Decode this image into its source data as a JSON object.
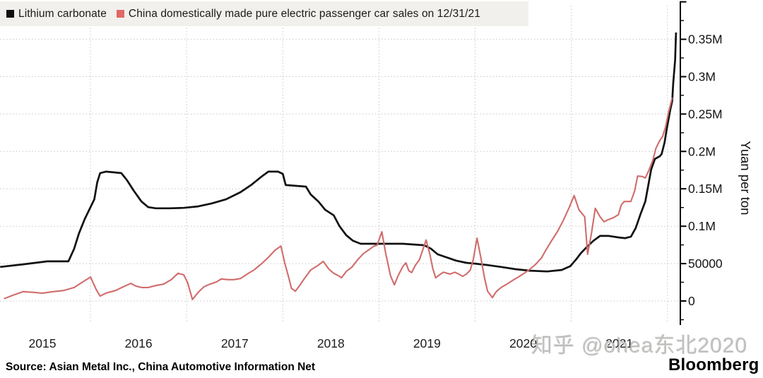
{
  "legend": {
    "items": [
      {
        "label": "Lithium carbonate",
        "color": "#101010"
      },
      {
        "label": "China domestically made pure electric passenger car sales on 12/31/21",
        "color": "#e06868"
      }
    ]
  },
  "source": "Source: Asian Metal Inc., China Automotive Information Net",
  "watermark": "知乎 @ohea东北2020",
  "brand": "Bloomberg",
  "chart_data": {
    "type": "line",
    "ylabel": "Yuan per ton",
    "ylim": [
      -25000,
      400000
    ],
    "xlim": [
      2015.05,
      2022.15
    ],
    "grid": "dotted",
    "legend_position": "top-left",
    "y_ticks": [
      {
        "value": 0,
        "label": "0"
      },
      {
        "value": 50000,
        "label": "50000"
      },
      {
        "value": 100000,
        "label": "0.1M"
      },
      {
        "value": 150000,
        "label": "0.15M"
      },
      {
        "value": 200000,
        "label": "0.2M"
      },
      {
        "value": 250000,
        "label": "0.25M"
      },
      {
        "value": 300000,
        "label": "0.3M"
      },
      {
        "value": 350000,
        "label": "0.35M"
      },
      {
        "value": 400000,
        "label": ""
      }
    ],
    "y_minor_ticks": [
      -25000,
      25000,
      75000,
      125000,
      175000,
      225000,
      275000,
      325000,
      375000
    ],
    "x_years": [
      2015,
      2016,
      2017,
      2018,
      2019,
      2020,
      2021
    ],
    "x_gridline_years": [
      2016,
      2017,
      2018,
      2019,
      2020,
      2021,
      2022
    ],
    "series": [
      {
        "name": "Lithium carbonate",
        "color": "#111111",
        "width": 2.7,
        "points": [
          [
            2015.06,
            45500
          ],
          [
            2015.3,
            49000
          ],
          [
            2015.55,
            53000
          ],
          [
            2015.77,
            53000
          ],
          [
            2015.83,
            70000
          ],
          [
            2015.88,
            90500
          ],
          [
            2015.94,
            109500
          ],
          [
            2016.0,
            125500
          ],
          [
            2016.04,
            136000
          ],
          [
            2016.07,
            158500
          ],
          [
            2016.1,
            171000
          ],
          [
            2016.16,
            173000
          ],
          [
            2016.25,
            172000
          ],
          [
            2016.32,
            171000
          ],
          [
            2016.38,
            161500
          ],
          [
            2016.45,
            147500
          ],
          [
            2016.53,
            133000
          ],
          [
            2016.6,
            125500
          ],
          [
            2016.68,
            124000
          ],
          [
            2016.82,
            124000
          ],
          [
            2016.97,
            124500
          ],
          [
            2017.12,
            126500
          ],
          [
            2017.26,
            130500
          ],
          [
            2017.41,
            136000
          ],
          [
            2017.56,
            145500
          ],
          [
            2017.67,
            155000
          ],
          [
            2017.78,
            166500
          ],
          [
            2017.85,
            173000
          ],
          [
            2017.95,
            173000
          ],
          [
            2018.0,
            170000
          ],
          [
            2018.03,
            155000
          ],
          [
            2018.24,
            153000
          ],
          [
            2018.29,
            142500
          ],
          [
            2018.37,
            133000
          ],
          [
            2018.44,
            122000
          ],
          [
            2018.53,
            114500
          ],
          [
            2018.59,
            100000
          ],
          [
            2018.66,
            88000
          ],
          [
            2018.73,
            80500
          ],
          [
            2018.81,
            76500
          ],
          [
            2019.03,
            76500
          ],
          [
            2019.25,
            76500
          ],
          [
            2019.47,
            74500
          ],
          [
            2019.54,
            70000
          ],
          [
            2019.61,
            62500
          ],
          [
            2019.7,
            58500
          ],
          [
            2019.8,
            54000
          ],
          [
            2019.91,
            51000
          ],
          [
            2020.0,
            50000
          ],
          [
            2020.13,
            48000
          ],
          [
            2020.27,
            45500
          ],
          [
            2020.42,
            42500
          ],
          [
            2020.57,
            40500
          ],
          [
            2020.75,
            39500
          ],
          [
            2020.9,
            41500
          ],
          [
            2020.99,
            46500
          ],
          [
            2021.05,
            55500
          ],
          [
            2021.1,
            64000
          ],
          [
            2021.16,
            72000
          ],
          [
            2021.23,
            80500
          ],
          [
            2021.3,
            87000
          ],
          [
            2021.39,
            87000
          ],
          [
            2021.49,
            85000
          ],
          [
            2021.56,
            84000
          ],
          [
            2021.62,
            86000
          ],
          [
            2021.67,
            97500
          ],
          [
            2021.72,
            116000
          ],
          [
            2021.77,
            133000
          ],
          [
            2021.8,
            154000
          ],
          [
            2021.83,
            175500
          ],
          [
            2021.87,
            190000
          ],
          [
            2021.92,
            193500
          ],
          [
            2021.94,
            196500
          ],
          [
            2021.97,
            211500
          ],
          [
            2021.99,
            227500
          ],
          [
            2022.01,
            242000
          ],
          [
            2022.03,
            256000
          ],
          [
            2022.05,
            267500
          ],
          [
            2022.06,
            291000
          ],
          [
            2022.08,
            322000
          ],
          [
            2022.09,
            359000
          ]
        ]
      },
      {
        "name": "China domestically made pure electric passenger car sales on 12/31/21",
        "color": "#d06c6c",
        "width": 2.1,
        "points": [
          [
            2015.1,
            3000
          ],
          [
            2015.21,
            8500
          ],
          [
            2015.3,
            12500
          ],
          [
            2015.41,
            11500
          ],
          [
            2015.5,
            10500
          ],
          [
            2015.61,
            12500
          ],
          [
            2015.72,
            14000
          ],
          [
            2015.83,
            18000
          ],
          [
            2015.92,
            25500
          ],
          [
            2016.0,
            32000
          ],
          [
            2016.06,
            15000
          ],
          [
            2016.1,
            6500
          ],
          [
            2016.16,
            10500
          ],
          [
            2016.26,
            14000
          ],
          [
            2016.34,
            19000
          ],
          [
            2016.42,
            23500
          ],
          [
            2016.47,
            20000
          ],
          [
            2016.53,
            18000
          ],
          [
            2016.6,
            18000
          ],
          [
            2016.69,
            21000
          ],
          [
            2016.76,
            22500
          ],
          [
            2016.84,
            28500
          ],
          [
            2016.91,
            37000
          ],
          [
            2016.97,
            35000
          ],
          [
            2017.01,
            24500
          ],
          [
            2017.06,
            2000
          ],
          [
            2017.12,
            11500
          ],
          [
            2017.18,
            19000
          ],
          [
            2017.24,
            22500
          ],
          [
            2017.31,
            25500
          ],
          [
            2017.36,
            29500
          ],
          [
            2017.43,
            28500
          ],
          [
            2017.49,
            28500
          ],
          [
            2017.56,
            30000
          ],
          [
            2017.63,
            36000
          ],
          [
            2017.7,
            41500
          ],
          [
            2017.78,
            50000
          ],
          [
            2017.85,
            58500
          ],
          [
            2017.92,
            68000
          ],
          [
            2017.98,
            73500
          ],
          [
            2018.02,
            51000
          ],
          [
            2018.06,
            32000
          ],
          [
            2018.09,
            17000
          ],
          [
            2018.13,
            13000
          ],
          [
            2018.18,
            21500
          ],
          [
            2018.23,
            31000
          ],
          [
            2018.29,
            41500
          ],
          [
            2018.37,
            48000
          ],
          [
            2018.42,
            53000
          ],
          [
            2018.48,
            42500
          ],
          [
            2018.53,
            37000
          ],
          [
            2018.59,
            33000
          ],
          [
            2018.61,
            31000
          ],
          [
            2018.66,
            39500
          ],
          [
            2018.72,
            45500
          ],
          [
            2018.78,
            55500
          ],
          [
            2018.84,
            63500
          ],
          [
            2018.9,
            69000
          ],
          [
            2018.95,
            73500
          ],
          [
            2018.98,
            74500
          ],
          [
            2019.03,
            92500
          ],
          [
            2019.07,
            64000
          ],
          [
            2019.12,
            34000
          ],
          [
            2019.16,
            21500
          ],
          [
            2019.2,
            34000
          ],
          [
            2019.25,
            46500
          ],
          [
            2019.28,
            51000
          ],
          [
            2019.31,
            40500
          ],
          [
            2019.34,
            38000
          ],
          [
            2019.38,
            48000
          ],
          [
            2019.42,
            55000
          ],
          [
            2019.46,
            70000
          ],
          [
            2019.49,
            81500
          ],
          [
            2019.53,
            62500
          ],
          [
            2019.56,
            43500
          ],
          [
            2019.59,
            31000
          ],
          [
            2019.63,
            35000
          ],
          [
            2019.67,
            38500
          ],
          [
            2019.71,
            37000
          ],
          [
            2019.74,
            36000
          ],
          [
            2019.79,
            38500
          ],
          [
            2019.83,
            36000
          ],
          [
            2019.87,
            33000
          ],
          [
            2019.91,
            36000
          ],
          [
            2019.95,
            41500
          ],
          [
            2019.98,
            55000
          ],
          [
            2020.02,
            84000
          ],
          [
            2020.06,
            57500
          ],
          [
            2020.1,
            29500
          ],
          [
            2020.13,
            13000
          ],
          [
            2020.18,
            4500
          ],
          [
            2020.22,
            12500
          ],
          [
            2020.27,
            18000
          ],
          [
            2020.33,
            22500
          ],
          [
            2020.39,
            27500
          ],
          [
            2020.45,
            32000
          ],
          [
            2020.51,
            37000
          ],
          [
            2020.57,
            42500
          ],
          [
            2020.63,
            49000
          ],
          [
            2020.69,
            57500
          ],
          [
            2020.74,
            69000
          ],
          [
            2020.8,
            81500
          ],
          [
            2020.86,
            93500
          ],
          [
            2020.92,
            108500
          ],
          [
            2020.98,
            125500
          ],
          [
            2021.03,
            141000
          ],
          [
            2021.08,
            122000
          ],
          [
            2021.14,
            112500
          ],
          [
            2021.17,
            62500
          ],
          [
            2021.21,
            90500
          ],
          [
            2021.25,
            124000
          ],
          [
            2021.3,
            112500
          ],
          [
            2021.34,
            106000
          ],
          [
            2021.38,
            108500
          ],
          [
            2021.44,
            111500
          ],
          [
            2021.49,
            115500
          ],
          [
            2021.52,
            128500
          ],
          [
            2021.55,
            133000
          ],
          [
            2021.62,
            133000
          ],
          [
            2021.66,
            147500
          ],
          [
            2021.69,
            167000
          ],
          [
            2021.74,
            166500
          ],
          [
            2021.77,
            164500
          ],
          [
            2021.81,
            175500
          ],
          [
            2021.85,
            189000
          ],
          [
            2021.88,
            204000
          ],
          [
            2021.92,
            214500
          ],
          [
            2021.95,
            220000
          ],
          [
            2021.98,
            232500
          ],
          [
            2022.01,
            251500
          ],
          [
            2022.05,
            272000
          ]
        ]
      }
    ]
  }
}
